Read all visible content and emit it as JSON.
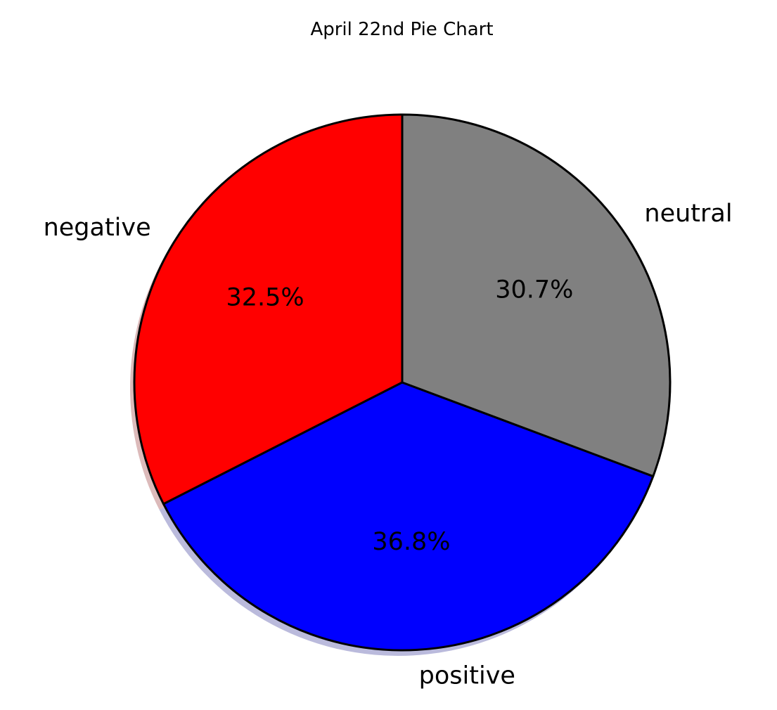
{
  "chart_data": {
    "type": "pie",
    "title": "April 22nd Pie Chart",
    "start_angle_deg": 90,
    "direction": "counterclockwise",
    "shadow": true,
    "slices": [
      {
        "label": "negative",
        "percent": 32.5,
        "percent_label": "32.5%",
        "color": "#ff0000"
      },
      {
        "label": "positive",
        "percent": 36.8,
        "percent_label": "36.8%",
        "color": "#0000ff"
      },
      {
        "label": "neutral",
        "percent": 30.7,
        "percent_label": "30.7%",
        "color": "#808080"
      }
    ]
  }
}
